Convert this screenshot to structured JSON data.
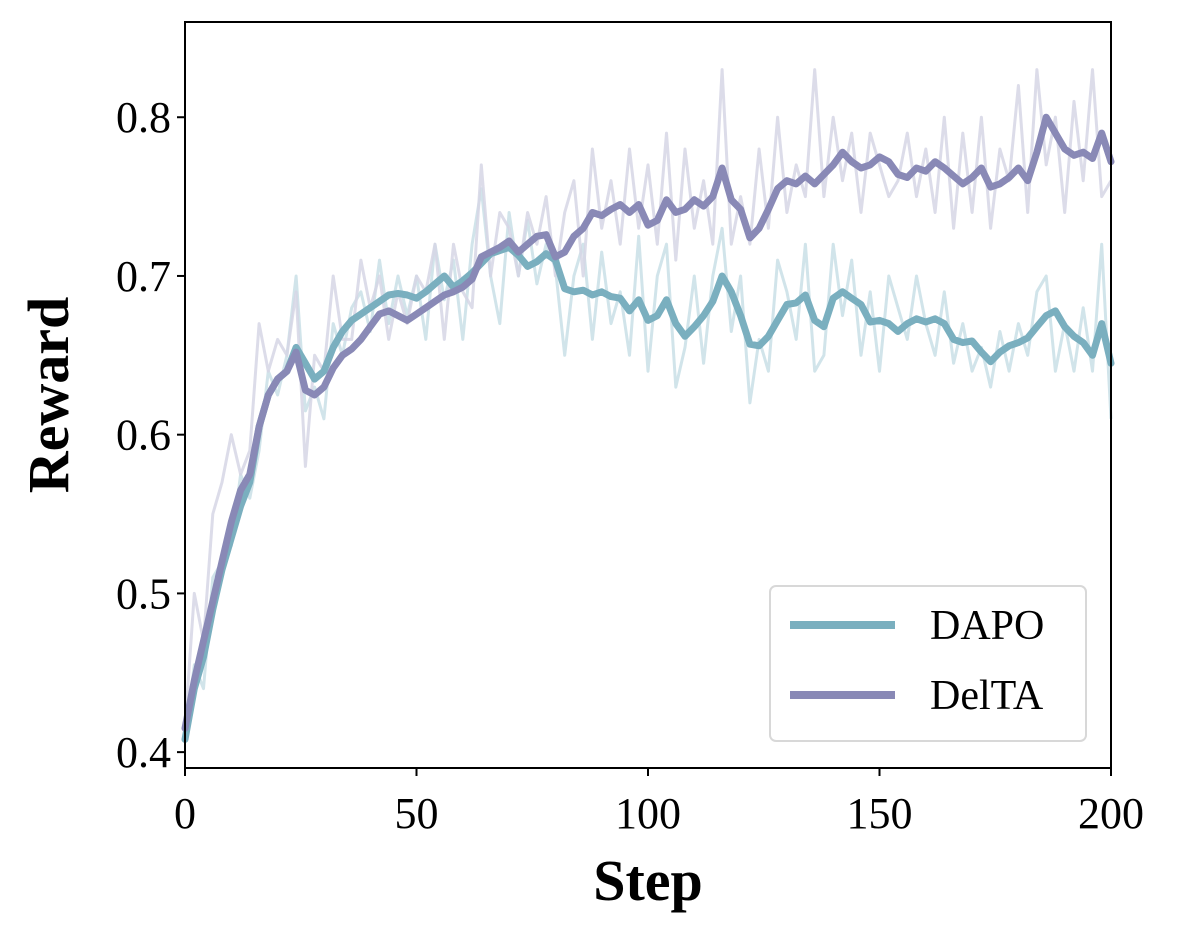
{
  "chart_data": {
    "type": "line",
    "xlabel": "Step",
    "ylabel": "Reward",
    "xlim": [
      0,
      200
    ],
    "ylim": [
      0.39,
      0.86
    ],
    "xticks": [
      0,
      50,
      100,
      150,
      200
    ],
    "xtick_labels": [
      "0",
      "50",
      "100",
      "150",
      "200"
    ],
    "yticks": [
      0.4,
      0.5,
      0.6,
      0.7,
      0.8
    ],
    "ytick_labels": [
      "0.4",
      "0.5",
      "0.6",
      "0.7",
      "0.8"
    ],
    "grid": false,
    "legend": "bottom-right",
    "series": [
      {
        "name": "DAPO",
        "color": "#7aafbf",
        "raw_color": "#c9dfe6",
        "x": [
          0,
          2,
          4,
          6,
          8,
          10,
          12,
          14,
          16,
          18,
          20,
          22,
          24,
          26,
          28,
          30,
          32,
          34,
          36,
          38,
          40,
          42,
          44,
          46,
          48,
          50,
          52,
          54,
          56,
          58,
          60,
          62,
          64,
          66,
          68,
          70,
          72,
          74,
          76,
          78,
          80,
          82,
          84,
          86,
          88,
          90,
          92,
          94,
          96,
          98,
          100,
          102,
          104,
          106,
          108,
          110,
          112,
          114,
          116,
          118,
          120,
          122,
          124,
          126,
          128,
          130,
          132,
          134,
          136,
          138,
          140,
          142,
          144,
          146,
          148,
          150,
          152,
          154,
          156,
          158,
          160,
          162,
          164,
          166,
          168,
          170,
          172,
          174,
          176,
          178,
          180,
          182,
          184,
          186,
          188,
          190,
          192,
          194,
          196,
          198,
          200
        ],
        "smoothed": [
          0.408,
          0.44,
          0.46,
          0.49,
          0.515,
          0.535,
          0.555,
          0.57,
          0.605,
          0.625,
          0.635,
          0.64,
          0.655,
          0.645,
          0.635,
          0.64,
          0.655,
          0.665,
          0.672,
          0.676,
          0.68,
          0.684,
          0.688,
          0.689,
          0.688,
          0.686,
          0.69,
          0.695,
          0.7,
          0.693,
          0.697,
          0.702,
          0.708,
          0.714,
          0.716,
          0.718,
          0.713,
          0.706,
          0.709,
          0.714,
          0.71,
          0.692,
          0.69,
          0.691,
          0.688,
          0.69,
          0.687,
          0.686,
          0.678,
          0.685,
          0.672,
          0.675,
          0.685,
          0.67,
          0.662,
          0.668,
          0.675,
          0.684,
          0.7,
          0.69,
          0.675,
          0.657,
          0.656,
          0.662,
          0.672,
          0.682,
          0.683,
          0.688,
          0.672,
          0.668,
          0.686,
          0.69,
          0.686,
          0.682,
          0.671,
          0.672,
          0.67,
          0.665,
          0.67,
          0.673,
          0.671,
          0.673,
          0.67,
          0.66,
          0.658,
          0.659,
          0.652,
          0.646,
          0.652,
          0.656,
          0.658,
          0.661,
          0.668,
          0.675,
          0.678,
          0.668,
          0.662,
          0.658,
          0.65,
          0.67,
          0.645
        ],
        "raw": [
          0.408,
          0.455,
          0.44,
          0.51,
          0.52,
          0.53,
          0.575,
          0.56,
          0.59,
          0.64,
          0.625,
          0.65,
          0.7,
          0.615,
          0.63,
          0.61,
          0.67,
          0.65,
          0.68,
          0.69,
          0.665,
          0.71,
          0.67,
          0.7,
          0.675,
          0.7,
          0.66,
          0.72,
          0.685,
          0.71,
          0.66,
          0.72,
          0.755,
          0.7,
          0.67,
          0.74,
          0.7,
          0.735,
          0.695,
          0.72,
          0.705,
          0.65,
          0.7,
          0.72,
          0.66,
          0.715,
          0.67,
          0.69,
          0.65,
          0.725,
          0.64,
          0.7,
          0.72,
          0.63,
          0.655,
          0.7,
          0.645,
          0.7,
          0.73,
          0.665,
          0.7,
          0.62,
          0.66,
          0.64,
          0.71,
          0.69,
          0.66,
          0.72,
          0.64,
          0.65,
          0.72,
          0.675,
          0.71,
          0.65,
          0.69,
          0.64,
          0.7,
          0.68,
          0.66,
          0.7,
          0.67,
          0.65,
          0.69,
          0.645,
          0.67,
          0.64,
          0.655,
          0.63,
          0.665,
          0.64,
          0.67,
          0.65,
          0.69,
          0.7,
          0.64,
          0.67,
          0.64,
          0.68,
          0.64,
          0.72,
          0.61
        ]
      },
      {
        "name": "DelTA",
        "color": "#8989b6",
        "raw_color": "#d6d6e5",
        "x": [
          0,
          2,
          4,
          6,
          8,
          10,
          12,
          14,
          16,
          18,
          20,
          22,
          24,
          26,
          28,
          30,
          32,
          34,
          36,
          38,
          40,
          42,
          44,
          46,
          48,
          50,
          52,
          54,
          56,
          58,
          60,
          62,
          64,
          66,
          68,
          70,
          72,
          74,
          76,
          78,
          80,
          82,
          84,
          86,
          88,
          90,
          92,
          94,
          96,
          98,
          100,
          102,
          104,
          106,
          108,
          110,
          112,
          114,
          116,
          118,
          120,
          122,
          124,
          126,
          128,
          130,
          132,
          134,
          136,
          138,
          140,
          142,
          144,
          146,
          148,
          150,
          152,
          154,
          156,
          158,
          160,
          162,
          164,
          166,
          168,
          170,
          172,
          174,
          176,
          178,
          180,
          182,
          184,
          186,
          188,
          190,
          192,
          194,
          196,
          198,
          200
        ],
        "smoothed": [
          0.415,
          0.445,
          0.47,
          0.495,
          0.52,
          0.545,
          0.565,
          0.575,
          0.605,
          0.625,
          0.635,
          0.64,
          0.652,
          0.628,
          0.625,
          0.63,
          0.642,
          0.65,
          0.654,
          0.66,
          0.668,
          0.676,
          0.678,
          0.675,
          0.672,
          0.676,
          0.68,
          0.684,
          0.688,
          0.69,
          0.693,
          0.698,
          0.712,
          0.715,
          0.718,
          0.722,
          0.715,
          0.72,
          0.725,
          0.726,
          0.712,
          0.715,
          0.725,
          0.73,
          0.74,
          0.738,
          0.742,
          0.745,
          0.74,
          0.745,
          0.732,
          0.735,
          0.748,
          0.74,
          0.742,
          0.748,
          0.744,
          0.75,
          0.768,
          0.748,
          0.742,
          0.724,
          0.73,
          0.742,
          0.755,
          0.76,
          0.758,
          0.763,
          0.758,
          0.764,
          0.77,
          0.778,
          0.772,
          0.768,
          0.77,
          0.775,
          0.772,
          0.764,
          0.762,
          0.768,
          0.766,
          0.772,
          0.768,
          0.763,
          0.758,
          0.762,
          0.768,
          0.756,
          0.758,
          0.762,
          0.768,
          0.76,
          0.778,
          0.8,
          0.79,
          0.78,
          0.776,
          0.778,
          0.774,
          0.79,
          0.772
        ],
        "raw": [
          0.415,
          0.5,
          0.47,
          0.55,
          0.57,
          0.6,
          0.575,
          0.59,
          0.67,
          0.64,
          0.66,
          0.65,
          0.69,
          0.58,
          0.65,
          0.64,
          0.7,
          0.66,
          0.66,
          0.71,
          0.68,
          0.7,
          0.66,
          0.69,
          0.67,
          0.7,
          0.69,
          0.72,
          0.66,
          0.72,
          0.69,
          0.68,
          0.77,
          0.7,
          0.74,
          0.73,
          0.7,
          0.74,
          0.72,
          0.75,
          0.7,
          0.74,
          0.76,
          0.7,
          0.78,
          0.73,
          0.76,
          0.72,
          0.78,
          0.73,
          0.77,
          0.72,
          0.79,
          0.71,
          0.78,
          0.73,
          0.76,
          0.72,
          0.83,
          0.72,
          0.75,
          0.72,
          0.78,
          0.73,
          0.8,
          0.74,
          0.77,
          0.75,
          0.83,
          0.75,
          0.8,
          0.76,
          0.79,
          0.74,
          0.79,
          0.77,
          0.75,
          0.76,
          0.79,
          0.75,
          0.78,
          0.74,
          0.8,
          0.73,
          0.79,
          0.74,
          0.8,
          0.73,
          0.78,
          0.76,
          0.82,
          0.74,
          0.83,
          0.77,
          0.8,
          0.74,
          0.81,
          0.76,
          0.83,
          0.75,
          0.76
        ]
      }
    ]
  }
}
